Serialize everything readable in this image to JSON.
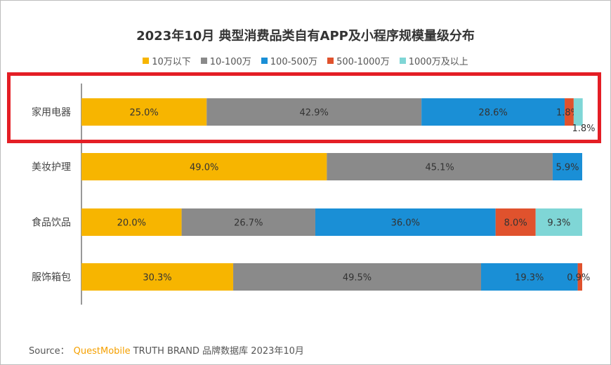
{
  "source": {
    "label": "Source：",
    "brand": "QuestMobile",
    "rest": "TRUTH BRAND 品牌数据库 2023年10月"
  },
  "colors": {
    "accent_box": "#e41e25",
    "segments": [
      "#f7b500",
      "#8a8a8a",
      "#1a8fd6",
      "#e0522d",
      "#7fd6d6"
    ]
  },
  "chart_data": {
    "type": "bar",
    "orientation": "horizontal",
    "stacked": true,
    "percent_stacked": true,
    "title": "2023年10月 典型消费品类自有APP及小程序规模量级分布",
    "categories": [
      "家用电器",
      "美妆护理",
      "食品饮品",
      "服饰箱包"
    ],
    "series": [
      {
        "name": "10万以下",
        "values": [
          25.0,
          49.0,
          20.0,
          30.3
        ]
      },
      {
        "name": "10-100万",
        "values": [
          42.9,
          45.1,
          26.7,
          49.5
        ]
      },
      {
        "name": "100-500万",
        "values": [
          28.6,
          5.9,
          36.0,
          19.3
        ]
      },
      {
        "name": "500-1000万",
        "values": [
          1.8,
          0.0,
          8.0,
          0.9
        ]
      },
      {
        "name": "1000万及以上",
        "values": [
          1.8,
          0.0,
          9.3,
          0.0
        ]
      }
    ],
    "labels": [
      [
        "25.0%",
        "42.9%",
        "28.6%",
        "1.8%",
        "1.8%"
      ],
      [
        "49.0%",
        "45.1%",
        "5.9%",
        "",
        ""
      ],
      [
        "20.0%",
        "26.7%",
        "36.0%",
        "8.0%",
        "9.3%"
      ],
      [
        "30.3%",
        "49.5%",
        "19.3%",
        "0.9%",
        ""
      ]
    ],
    "xlim": [
      0,
      100
    ],
    "legend_position": "top",
    "highlighted_category": "家用电器"
  }
}
